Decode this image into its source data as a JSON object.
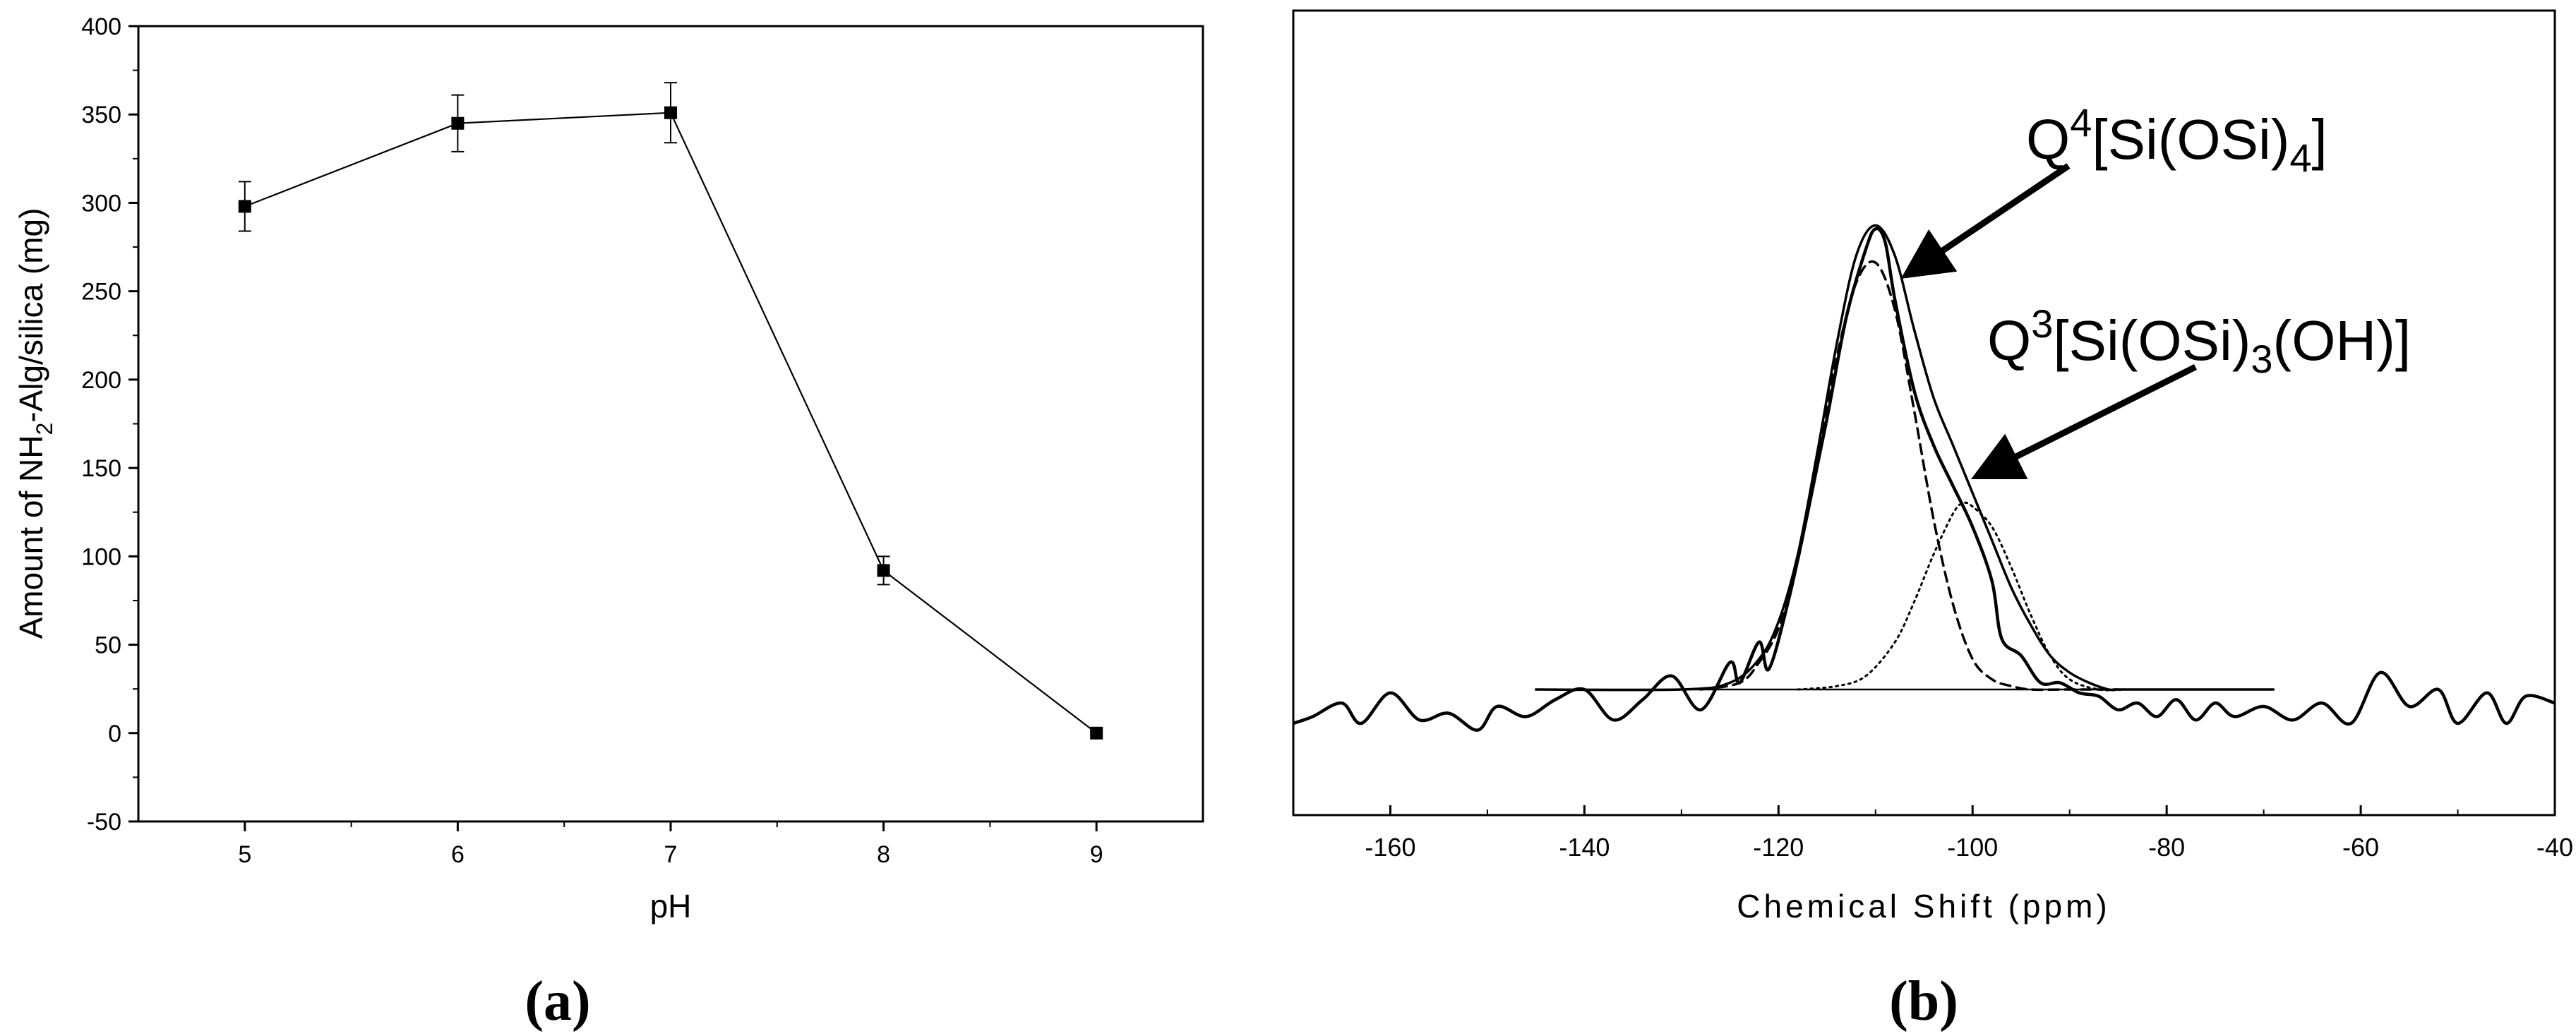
{
  "chart_data": [
    {
      "type": "line",
      "panel_label": "(a)",
      "xlabel": "pH",
      "ylabel": "Amount of NH2-Alg/silica (mg)",
      "ylabel_parts": {
        "pre": "Amount of NH",
        "sub": "2",
        "post": "-Alg/silica (mg)"
      },
      "xlim": [
        4.5,
        9.5
      ],
      "ylim": [
        -50,
        400
      ],
      "xticks": [
        5,
        6,
        7,
        8,
        9
      ],
      "yticks": [
        -50,
        0,
        50,
        100,
        150,
        200,
        250,
        300,
        350,
        400
      ],
      "grid": false,
      "series": [
        {
          "x": [
            5,
            6,
            7,
            8,
            9
          ],
          "y": [
            298,
            345,
            351,
            92,
            0
          ],
          "error": [
            14,
            16,
            17,
            8,
            0
          ],
          "marker": "square"
        }
      ]
    },
    {
      "type": "line",
      "panel_label": "(b)",
      "xlabel": "Chemical Shift (ppm)",
      "xlim": [
        -170,
        -40
      ],
      "xticks": [
        -160,
        -140,
        -120,
        -100,
        -80,
        -60,
        -40
      ],
      "yticks": [],
      "grid": false,
      "baseline": {
        "x_start": -145,
        "x_end": -69
      },
      "series": [
        {
          "style": "noisy spectrum",
          "x": [
            -170,
            -168,
            -165,
            -163,
            -160,
            -157,
            -154,
            -151,
            -149,
            -146,
            -143,
            -140,
            -137,
            -134,
            -131,
            -128,
            -125,
            -124,
            -122,
            -121,
            -119,
            -117,
            -115,
            -113,
            -111,
            -110,
            -109,
            -108,
            -106,
            -104,
            -102,
            -100,
            -98,
            -97,
            -95,
            -93,
            -91,
            -89,
            -87,
            -85,
            -83,
            -81,
            -79,
            -77,
            -75,
            -73,
            -70,
            -67,
            -64,
            -61,
            -58,
            -55,
            -52,
            -50,
            -47,
            -45,
            -43,
            -40
          ],
          "y": [
            0,
            0.02,
            0.06,
            0,
            0.09,
            0.01,
            0.03,
            -0.02,
            0.05,
            0.02,
            0.07,
            0.1,
            0.01,
            0.07,
            0.14,
            0.04,
            0.18,
            0.12,
            0.24,
            0.16,
            0.36,
            0.62,
            0.9,
            1.2,
            1.4,
            1.46,
            1.42,
            1.25,
            0.98,
            0.82,
            0.7,
            0.58,
            0.42,
            0.25,
            0.2,
            0.12,
            0.12,
            0.09,
            0.08,
            0.04,
            0.06,
            0.02,
            0.07,
            0.01,
            0.06,
            0.02,
            0.05,
            0.01,
            0.06,
            0,
            0.15,
            0.05,
            0.1,
            0.0,
            0.09,
            0.0,
            0.08,
            0.06
          ]
        },
        {
          "style": "fitted envelope",
          "x": [
            -145,
            -130,
            -125,
            -122,
            -120,
            -118,
            -116,
            -114,
            -112,
            -110,
            -108,
            -106,
            -104,
            -102,
            -100,
            -98,
            -96,
            -94,
            -92,
            -90,
            -88,
            -86,
            -85,
            -80,
            -69
          ],
          "y": [
            0.1,
            0.1,
            0.12,
            0.19,
            0.3,
            0.5,
            0.8,
            1.12,
            1.38,
            1.47,
            1.38,
            1.16,
            0.96,
            0.82,
            0.68,
            0.54,
            0.4,
            0.29,
            0.2,
            0.15,
            0.12,
            0.1,
            0.1,
            0.1,
            0.1
          ]
        },
        {
          "style": "dashed component",
          "name": "Q4[Si(OSi)4]",
          "x": [
            -128,
            -124,
            -122,
            -120,
            -118,
            -116,
            -114,
            -112,
            -110,
            -108,
            -106,
            -104,
            -102,
            -100,
            -98,
            -96,
            -94,
            -90,
            -85
          ],
          "y": [
            0.1,
            0.12,
            0.18,
            0.28,
            0.48,
            0.78,
            1.08,
            1.3,
            1.36,
            1.22,
            0.92,
            0.6,
            0.35,
            0.19,
            0.13,
            0.11,
            0.1,
            0.1,
            0.1
          ]
        },
        {
          "style": "dotted component",
          "name": "Q3[Si(OSi)3(OH)]",
          "x": [
            -118,
            -114,
            -111,
            -108,
            -106,
            -104,
            -102,
            -101,
            -100,
            -98,
            -96,
            -94,
            -92,
            -90,
            -87,
            -84
          ],
          "y": [
            0.1,
            0.11,
            0.14,
            0.24,
            0.36,
            0.5,
            0.62,
            0.65,
            0.64,
            0.58,
            0.46,
            0.32,
            0.2,
            0.13,
            0.1,
            0.1
          ]
        }
      ],
      "annotations": [
        {
          "base": "Q",
          "sup": "4",
          "body1": "[Si(OSi)",
          "sub": "4",
          "body2": "]"
        },
        {
          "base": "Q",
          "sup": "3",
          "body1": "[Si(OSi)",
          "sub": "3",
          "body2": "(OH)]"
        }
      ]
    }
  ]
}
